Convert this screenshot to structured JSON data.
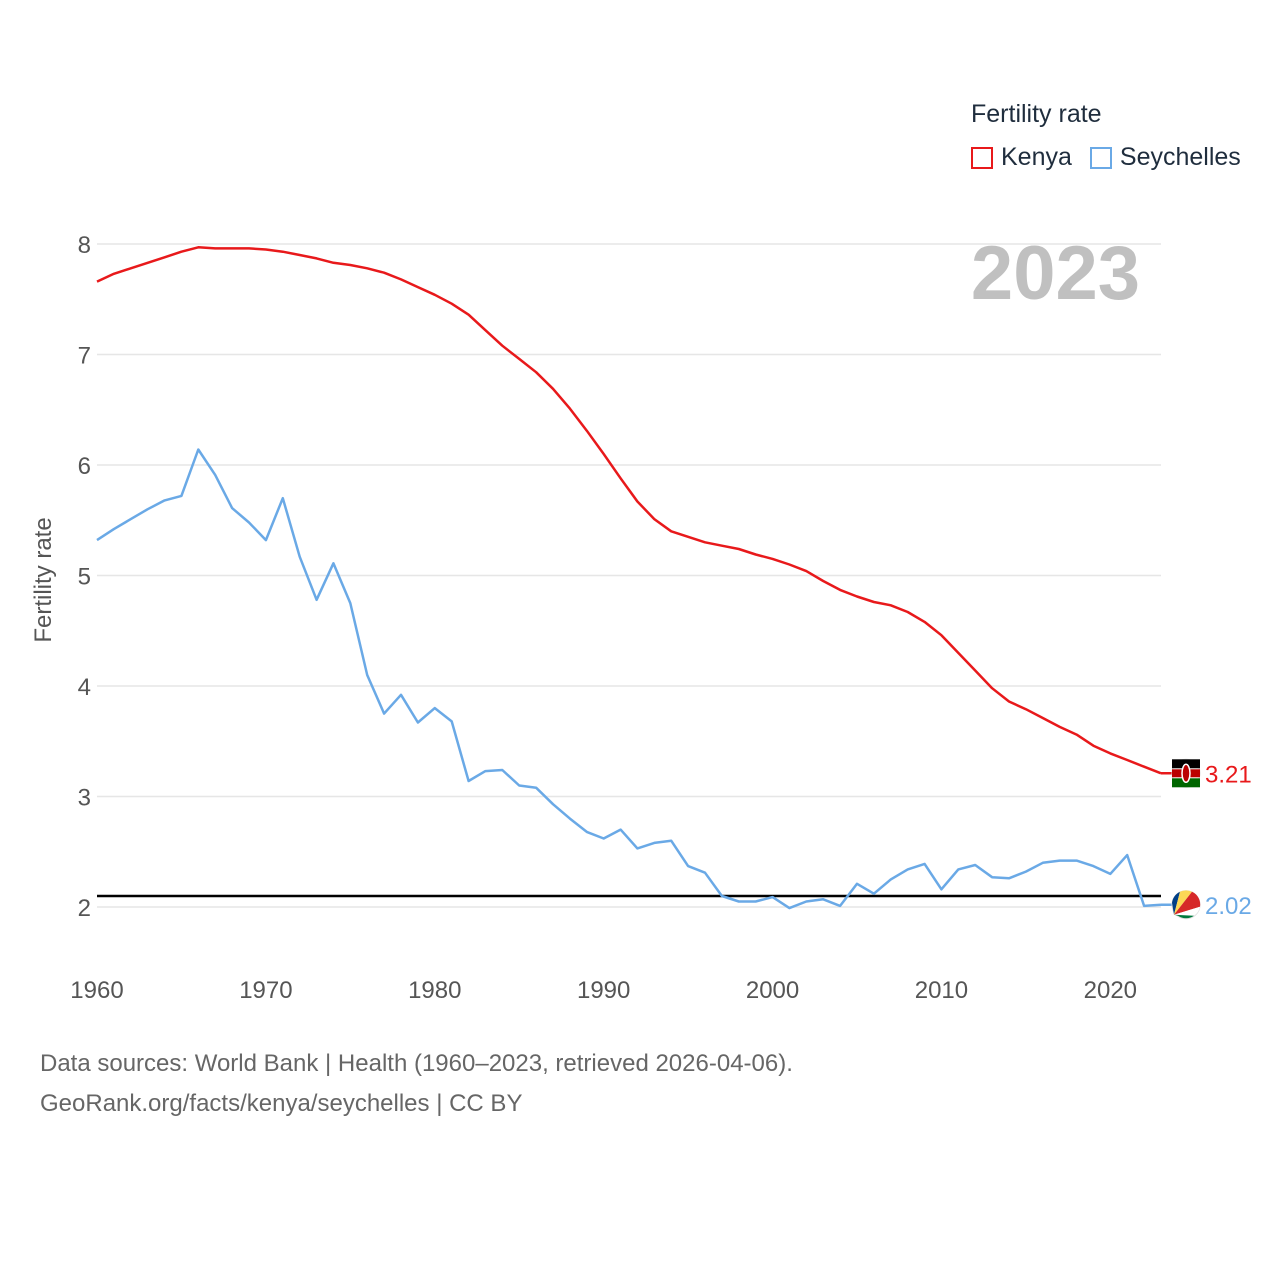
{
  "legend": {
    "title": "Fertility rate",
    "items": [
      {
        "label": "Kenya",
        "color": "#e8191b"
      },
      {
        "label": "Seychelles",
        "color": "#6aa9e6"
      }
    ]
  },
  "footer": {
    "line1": "Data sources: World Bank | Health (1960–2023, retrieved 2026-04-06).",
    "line2": "GeoRank.org/facts/kenya/seychelles | CC BY"
  },
  "chart_data": {
    "type": "line",
    "title": "",
    "year_label": "2023",
    "ylabel": "Fertility rate",
    "xlabel": "",
    "xlim": [
      1960,
      2023
    ],
    "ylim": [
      1.5,
      8.4
    ],
    "xticks": [
      1960,
      1970,
      1980,
      1990,
      2000,
      2010,
      2020
    ],
    "yticks": [
      2,
      3,
      4,
      5,
      6,
      7,
      8
    ],
    "reference_line": 2.1,
    "x": [
      1960,
      1961,
      1962,
      1963,
      1964,
      1965,
      1966,
      1967,
      1968,
      1969,
      1970,
      1971,
      1972,
      1973,
      1974,
      1975,
      1976,
      1977,
      1978,
      1979,
      1980,
      1981,
      1982,
      1983,
      1984,
      1985,
      1986,
      1987,
      1988,
      1989,
      1990,
      1991,
      1992,
      1993,
      1994,
      1995,
      1996,
      1997,
      1998,
      1999,
      2000,
      2001,
      2002,
      2003,
      2004,
      2005,
      2006,
      2007,
      2008,
      2009,
      2010,
      2011,
      2012,
      2013,
      2014,
      2015,
      2016,
      2017,
      2018,
      2019,
      2020,
      2021,
      2022,
      2023
    ],
    "series": [
      {
        "name": "Kenya",
        "color": "#e8191b",
        "end_label": "3.21",
        "values": [
          7.66,
          7.73,
          7.78,
          7.83,
          7.88,
          7.93,
          7.97,
          7.96,
          7.96,
          7.96,
          7.95,
          7.93,
          7.9,
          7.87,
          7.83,
          7.81,
          7.78,
          7.74,
          7.68,
          7.61,
          7.54,
          7.46,
          7.36,
          7.22,
          7.08,
          6.96,
          6.84,
          6.69,
          6.51,
          6.31,
          6.1,
          5.88,
          5.67,
          5.51,
          5.4,
          5.35,
          5.3,
          5.27,
          5.24,
          5.19,
          5.15,
          5.1,
          5.04,
          4.95,
          4.87,
          4.81,
          4.76,
          4.73,
          4.67,
          4.58,
          4.46,
          4.3,
          4.14,
          3.98,
          3.86,
          3.79,
          3.71,
          3.63,
          3.56,
          3.46,
          3.39,
          3.33,
          3.27,
          3.21
        ]
      },
      {
        "name": "Seychelles",
        "color": "#6aa9e6",
        "end_label": "2.02",
        "values": [
          5.32,
          5.42,
          5.51,
          5.6,
          5.68,
          5.72,
          6.14,
          5.91,
          5.61,
          5.48,
          5.32,
          5.7,
          5.17,
          4.78,
          5.11,
          4.75,
          4.1,
          3.75,
          3.92,
          3.67,
          3.8,
          3.68,
          3.14,
          3.23,
          3.24,
          3.1,
          3.08,
          2.93,
          2.8,
          2.68,
          2.62,
          2.7,
          2.53,
          2.58,
          2.6,
          2.37,
          2.31,
          2.1,
          2.05,
          2.05,
          2.09,
          1.99,
          2.05,
          2.07,
          2.01,
          2.21,
          2.12,
          2.25,
          2.34,
          2.39,
          2.16,
          2.34,
          2.38,
          2.27,
          2.26,
          2.32,
          2.4,
          2.42,
          2.42,
          2.37,
          2.3,
          2.47,
          2.01,
          2.02
        ]
      }
    ]
  }
}
